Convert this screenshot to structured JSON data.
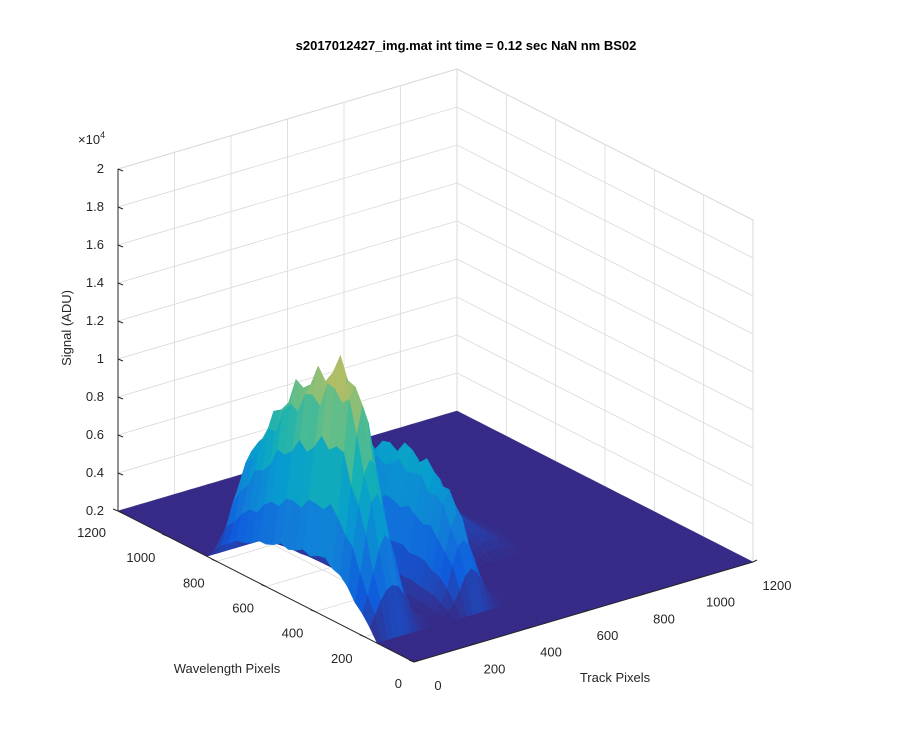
{
  "chart_data": {
    "type": "surface",
    "title": "s2017012427_img.mat int time = 0.12 sec  NaN nm BS02",
    "xlabel": "Track Pixels",
    "ylabel": "Wavelength Pixels",
    "zlabel": "Signal (ADU)",
    "z_exponent_label": "×10",
    "z_exponent_power": "4",
    "xlim": [
      0,
      1200
    ],
    "ylim": [
      0,
      1200
    ],
    "zlim": [
      2000,
      20000
    ],
    "x_ticks": [
      "0",
      "200",
      "400",
      "600",
      "800",
      "1000",
      "1200"
    ],
    "y_ticks": [
      "0",
      "200",
      "400",
      "600",
      "800",
      "1000",
      "1200"
    ],
    "z_ticks": [
      "0.2",
      "0.4",
      "0.6",
      "0.8",
      "1",
      "1.2",
      "1.4",
      "1.6",
      "1.8",
      "2"
    ],
    "z_tick_values": [
      2000,
      4000,
      6000,
      8000,
      10000,
      12000,
      14000,
      16000,
      18000,
      20000
    ],
    "grid": true,
    "colormap": "parula",
    "baseline_signal": 2000,
    "peaks": [
      {
        "track_center": 80,
        "track_width": 70,
        "wavelength_range": [
          150,
          1000
        ],
        "max_signal": 16800
      },
      {
        "track_center": 360,
        "track_width": 60,
        "wavelength_range": [
          150,
          950
        ],
        "max_signal": 11200
      },
      {
        "track_center": 650,
        "track_width": 70,
        "wavelength_range": [
          400,
          900
        ],
        "max_signal": 3400
      }
    ]
  }
}
